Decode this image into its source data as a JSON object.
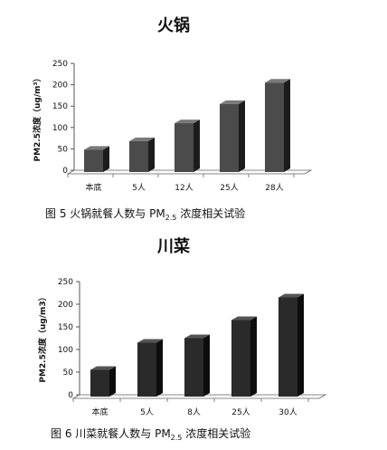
{
  "chart_data": [
    {
      "type": "bar",
      "title": "火锅",
      "ylabel": "PM2.5浓度（ug/m³）",
      "xlabel": "",
      "categories": [
        "本底",
        "5人",
        "12人",
        "25人",
        "28人"
      ],
      "values": [
        48,
        68,
        110,
        155,
        205
      ],
      "ylim": [
        0,
        250
      ],
      "yticks": [
        0,
        50,
        100,
        150,
        200,
        250
      ],
      "caption_main": "图 5  火锅就餐人数与 PM",
      "caption_sub": "2.5",
      "caption_tail": " 浓度相关试验",
      "colors": {
        "front": "#4b4b4b",
        "side": "#1c1c1c",
        "top": "#7a7a7a"
      }
    },
    {
      "type": "bar",
      "title": "川菜",
      "ylabel": "PM2.5浓度（ug/m3）",
      "xlabel": "",
      "categories": [
        "本底",
        "5人",
        "8人",
        "25人",
        "30人"
      ],
      "values": [
        55,
        115,
        125,
        165,
        215
      ],
      "ylim": [
        0,
        250
      ],
      "yticks": [
        0,
        50,
        100,
        150,
        200,
        250
      ],
      "caption_main": "图 6  川菜就餐人数与 PM",
      "caption_sub": "2.5",
      "caption_tail": " 浓度相关试验",
      "colors": {
        "front": "#2a2a2a",
        "side": "#0d0d0d",
        "top": "#555555"
      }
    }
  ]
}
